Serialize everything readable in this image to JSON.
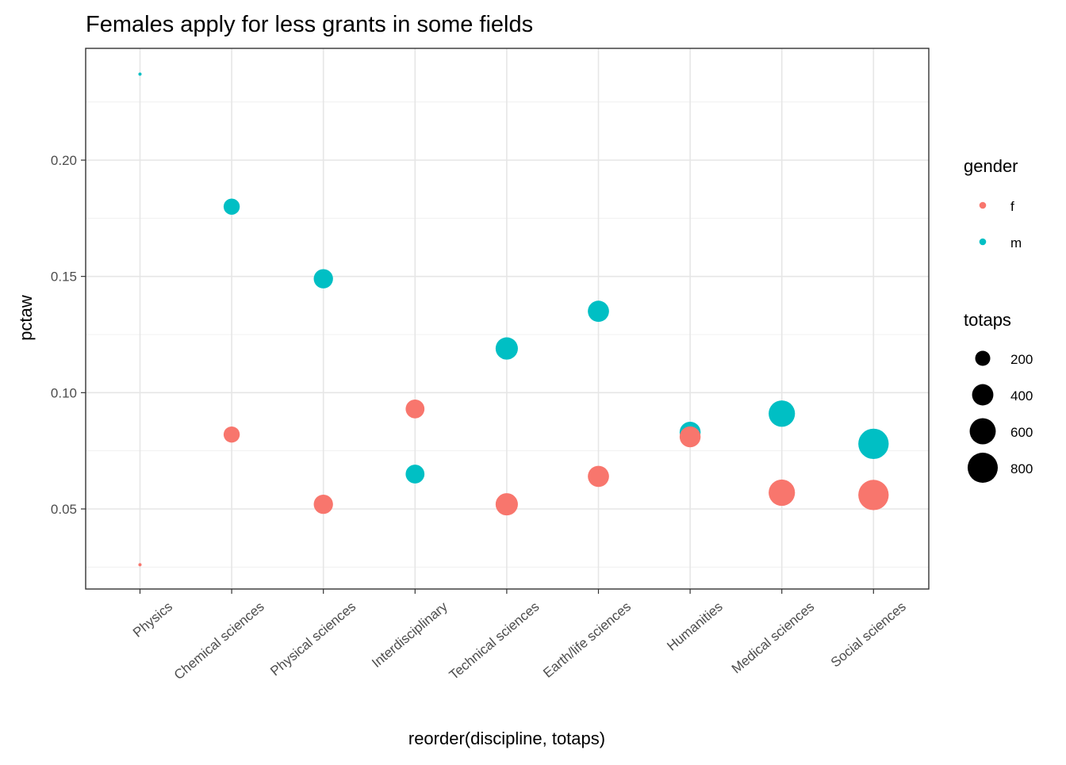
{
  "chart_data": {
    "type": "scatter",
    "title": "Females apply for less grants in some fields",
    "xlabel": "reorder(discipline, totaps)",
    "ylabel": "pctaw",
    "categories": [
      "Physics",
      "Chemical sciences",
      "Physical sciences",
      "Interdisciplinary",
      "Technical sciences",
      "Earth/life sciences",
      "Humanities",
      "Medical sciences",
      "Social sciences"
    ],
    "ylim": [
      0.0155,
      0.2455
    ],
    "y_ticks": [
      0.05,
      0.1,
      0.15,
      0.2
    ],
    "y_tick_labels": [
      "0.05",
      "0.10",
      "0.15",
      "0.20"
    ],
    "grid": true,
    "series": [
      {
        "name": "f",
        "color": "#F8766D",
        "values": [
          0.026,
          0.082,
          0.052,
          0.093,
          0.052,
          0.064,
          0.081,
          0.057,
          0.056
        ],
        "sizes": [
          9,
          230,
          327,
          313,
          437,
          395,
          387,
          611,
          813
        ]
      },
      {
        "name": "m",
        "color": "#00BFC4",
        "values": [
          0.237,
          0.18,
          0.149,
          0.065,
          0.119,
          0.135,
          0.083,
          0.091,
          0.078
        ]
      }
    ],
    "legends": {
      "color": {
        "title": "gender",
        "entries": [
          {
            "label": "f",
            "color": "#F8766D"
          },
          {
            "label": "m",
            "color": "#00BFC4"
          }
        ]
      },
      "size": {
        "title": "totaps",
        "values": [
          200,
          400,
          600,
          800
        ],
        "labels": [
          "200",
          "400",
          "600",
          "800"
        ]
      },
      "placement": "right"
    }
  }
}
